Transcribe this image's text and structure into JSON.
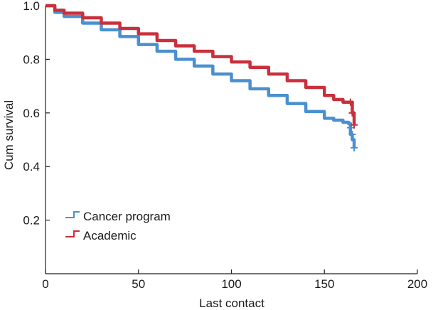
{
  "chart_data": {
    "type": "line",
    "title": "",
    "xlabel": "Last contact",
    "ylabel": "Cum survival",
    "xlim": [
      0,
      200
    ],
    "ylim": [
      0.0,
      1.0
    ],
    "x_ticks": [
      0,
      50,
      100,
      150,
      200
    ],
    "y_ticks": [
      0.2,
      0.4,
      0.6,
      0.8,
      1.0
    ],
    "x_tick_labels": [
      "0",
      "50",
      "100",
      "150",
      "200"
    ],
    "y_tick_labels": [
      "0.2",
      "0.4",
      "0.6",
      "0.8",
      "1.0"
    ],
    "grid": false,
    "legend_position": "bottom-left",
    "series": [
      {
        "name": "Cancer program",
        "color": "#4a90d0",
        "x": [
          0,
          5,
          10,
          20,
          30,
          40,
          50,
          60,
          70,
          80,
          90,
          100,
          110,
          120,
          130,
          140,
          150,
          155,
          160,
          163,
          164,
          165,
          166
        ],
        "y": [
          1.0,
          0.975,
          0.96,
          0.935,
          0.91,
          0.885,
          0.855,
          0.83,
          0.8,
          0.775,
          0.745,
          0.72,
          0.69,
          0.665,
          0.635,
          0.605,
          0.58,
          0.573,
          0.565,
          0.56,
          0.52,
          0.5,
          0.47
        ],
        "censor_marks_x": [
          164,
          165,
          166
        ],
        "censor_marks_y": [
          0.545,
          0.52,
          0.47
        ]
      },
      {
        "name": "Academic",
        "color": "#c8303c",
        "x": [
          0,
          5,
          10,
          20,
          30,
          40,
          50,
          60,
          70,
          80,
          90,
          100,
          110,
          120,
          130,
          140,
          150,
          155,
          160,
          164,
          165,
          166
        ],
        "y": [
          1.0,
          0.983,
          0.972,
          0.955,
          0.935,
          0.915,
          0.895,
          0.87,
          0.85,
          0.83,
          0.81,
          0.79,
          0.77,
          0.745,
          0.72,
          0.695,
          0.665,
          0.65,
          0.64,
          0.64,
          0.6,
          0.555
        ],
        "censor_marks_x": [
          164,
          165,
          166
        ],
        "censor_marks_y": [
          0.64,
          0.6,
          0.555
        ]
      }
    ]
  }
}
